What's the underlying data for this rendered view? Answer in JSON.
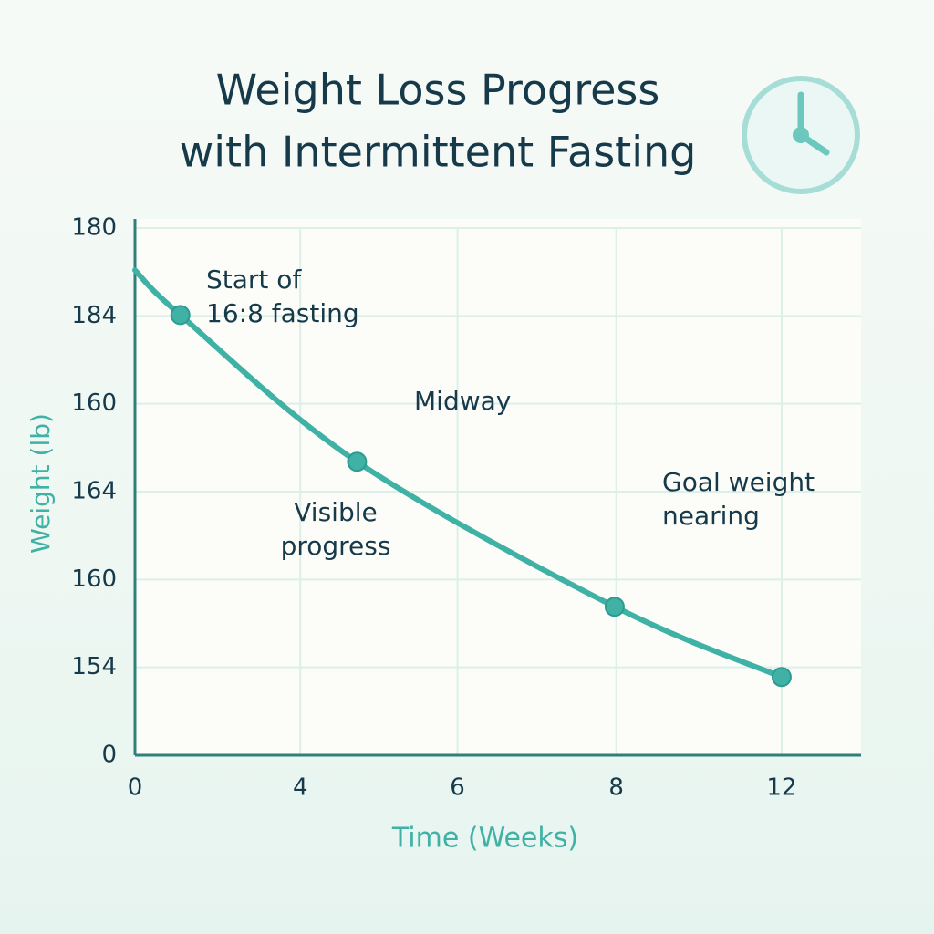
{
  "chart_data": {
    "type": "line",
    "title": "Weight Loss Progress",
    "subtitle": "with Intermittent Fasting",
    "x_label": "Time (Weeks)",
    "y_label": "Weight  (lb)",
    "xlim": [
      0,
      4.48
    ],
    "xticks": [
      {
        "value": 0,
        "label": "0"
      },
      {
        "value": 1.02,
        "label": "4"
      },
      {
        "value": 1.99,
        "label": "6"
      },
      {
        "value": 2.97,
        "label": "8"
      },
      {
        "value": 3.99,
        "label": "12"
      }
    ],
    "ylim": [
      0,
      6
    ],
    "yticks": [
      {
        "value": 0,
        "label": "0"
      },
      {
        "value": 1,
        "label": "154"
      },
      {
        "value": 2,
        "label": "160"
      },
      {
        "value": 3,
        "label": "164"
      },
      {
        "value": 4,
        "label": "160"
      },
      {
        "value": 5,
        "label": "184"
      },
      {
        "value": 6,
        "label": "180"
      }
    ],
    "grid": true,
    "series": [
      {
        "color": "#3fb1a5",
        "x": [
          0,
          0.28,
          1.37,
          2.96,
          3.99
        ],
        "values": [
          5.52,
          5.01,
          3.34,
          1.69,
          0.89
        ],
        "markers": [
          false,
          true,
          true,
          true,
          true
        ]
      }
    ],
    "annotations": [
      "Start of\n16:8 fasting",
      "Midway",
      "Visible\nprogress",
      "Goal weight\nnearing"
    ]
  }
}
